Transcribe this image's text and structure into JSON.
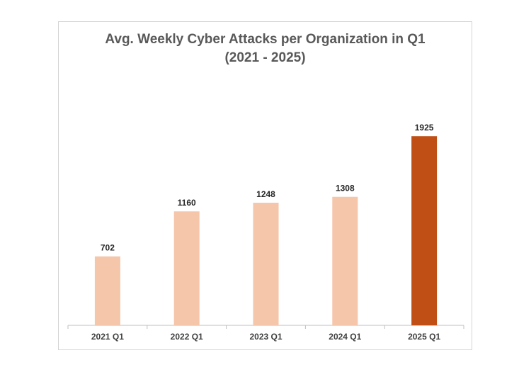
{
  "chart_data": {
    "type": "bar",
    "title_line1": "Avg. Weekly Cyber Attacks per Organization in Q1",
    "title_line2": "(2021 - 2025)",
    "categories": [
      "2021 Q1",
      "2022 Q1",
      "2023 Q1",
      "2024 Q1",
      "2025 Q1"
    ],
    "values": [
      702,
      1160,
      1248,
      1308,
      1925
    ],
    "data_labels": [
      "702",
      "1160",
      "1248",
      "1308",
      "1925"
    ],
    "xlabel": "",
    "ylabel": "",
    "ylim": [
      0,
      2000
    ],
    "grid": false,
    "legend": "none",
    "colors": {
      "default_bar": "#F5C6AA",
      "highlight_bar": "#C04F15",
      "axis": "#BFBFBF"
    },
    "highlight_index": 4
  }
}
